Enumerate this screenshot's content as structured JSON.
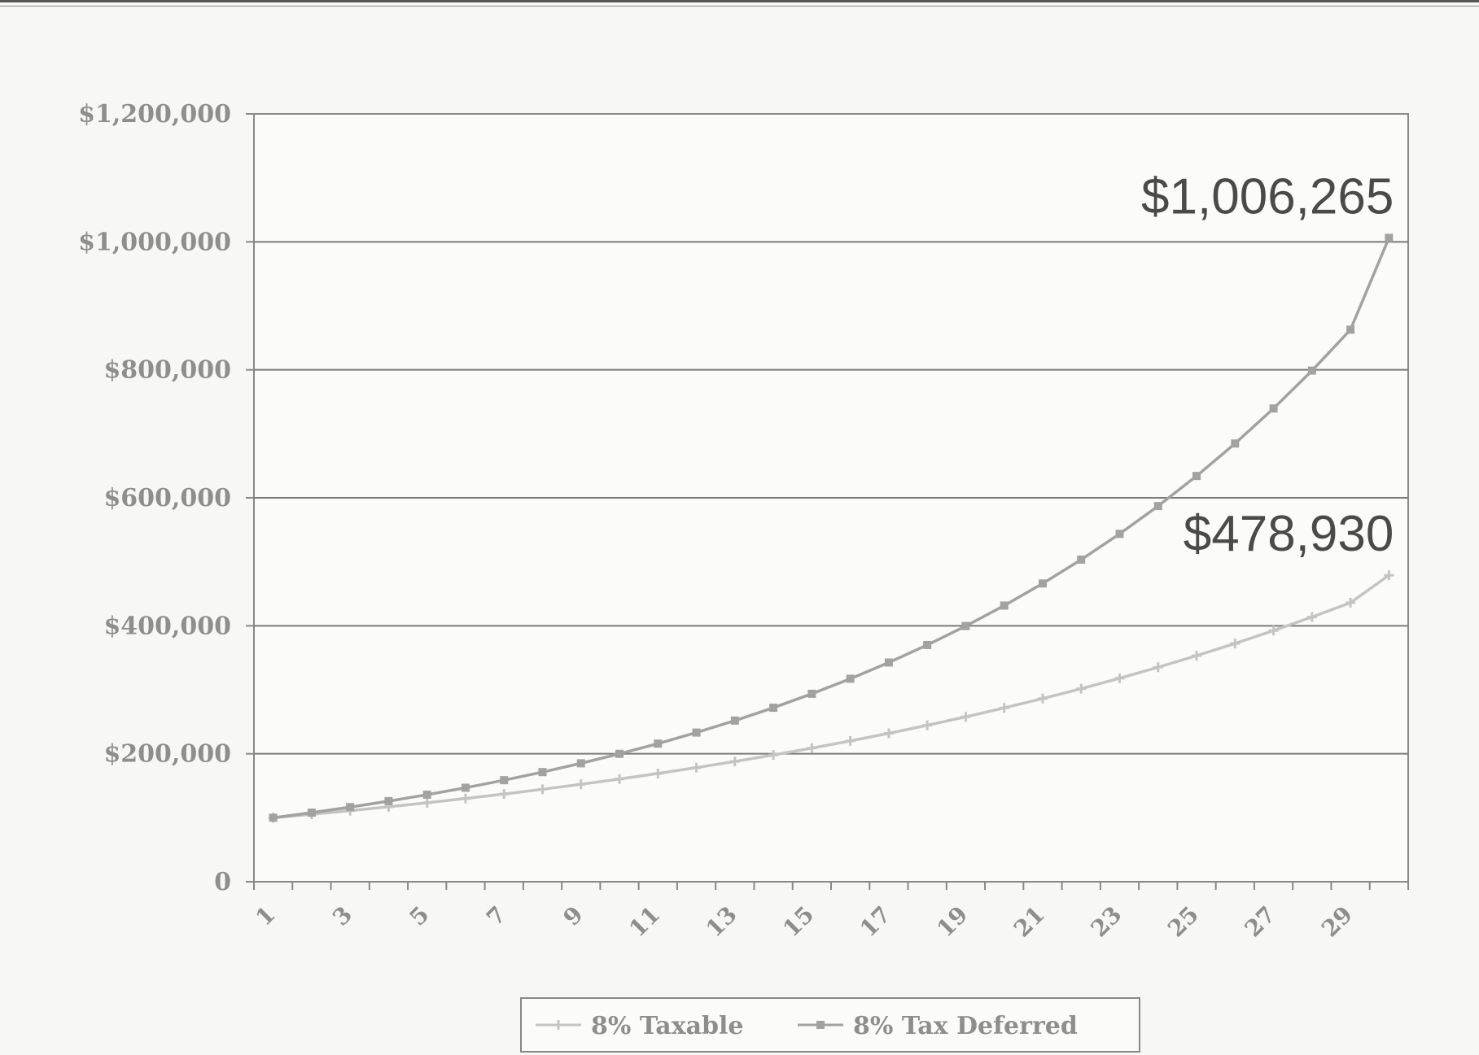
{
  "chart_data": {
    "type": "line",
    "title": "",
    "xlabel": "",
    "ylabel": "",
    "x": [
      1,
      2,
      3,
      4,
      5,
      6,
      7,
      8,
      9,
      10,
      11,
      12,
      13,
      14,
      15,
      16,
      17,
      18,
      19,
      20,
      21,
      22,
      23,
      24,
      25,
      26,
      27,
      28,
      29,
      30
    ],
    "x_tick_labels": [
      "1",
      "3",
      "5",
      "7",
      "9",
      "11",
      "13",
      "15",
      "17",
      "19",
      "21",
      "23",
      "25",
      "27",
      "29"
    ],
    "y_tick_labels": [
      "0",
      "$200,000",
      "$400,000",
      "$600,000",
      "$800,000",
      "$1,000,000",
      "$1,200,000"
    ],
    "ylim": [
      0,
      1200000
    ],
    "grid": true,
    "legend_position": "bottom",
    "series": [
      {
        "name": "8% Taxable",
        "color": "#c4c4c4",
        "marker": "plus",
        "values": [
          100000,
          105400,
          111092,
          117091,
          123414,
          130078,
          137103,
          144506,
          152309,
          160534,
          169203,
          178340,
          187971,
          198121,
          208820,
          220096,
          231981,
          244508,
          257712,
          271628,
          286296,
          301757,
          318051,
          335226,
          353330,
          372409,
          392519,
          413716,
          436057,
          478930
        ]
      },
      {
        "name": "8% Tax Deferred",
        "color": "#a2a2a2",
        "marker": "square",
        "values": [
          100000,
          108000,
          116640,
          125971,
          136049,
          146933,
          158687,
          171382,
          185093,
          199900,
          215892,
          233164,
          251817,
          271962,
          293719,
          317217,
          342594,
          370002,
          399602,
          431570,
          466096,
          503383,
          543654,
          587146,
          634118,
          684848,
          739635,
          798806,
          862710,
          1006265
        ]
      }
    ],
    "annotations": [
      {
        "text": "$1,006,265",
        "series": "8% Tax Deferred",
        "x": 30
      },
      {
        "text": "$478,930",
        "series": "8% Taxable",
        "x": 30
      }
    ]
  }
}
